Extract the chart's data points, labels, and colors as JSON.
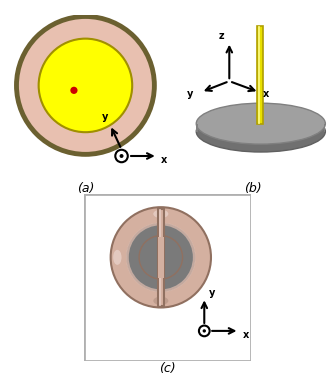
{
  "fig_width": 3.35,
  "fig_height": 3.8,
  "label_a": "(a)",
  "label_b": "(b)",
  "label_c": "(c)",
  "panel_a_bg": "#c0c0c0",
  "panel_b_bg": "#c8ccd0",
  "panel_c_bg": "#7a7a7a",
  "panel_c_border": "#b0b0b0",
  "patch_outer_color": "#e8c0b0",
  "patch_inner_color": "#ffff00",
  "patch_edge_color": "#8B7355",
  "red_dot_color": "#cc0000",
  "monopole_color": "#e8e000",
  "monopole_edge": "#b0a000",
  "ground_color": "#909090",
  "ground_edge": "#707070",
  "torus_color": "#d4b0a0",
  "torus_edge": "#907060",
  "torus_highlight": "#e8d0c8",
  "torus_shadow": "#b09080"
}
